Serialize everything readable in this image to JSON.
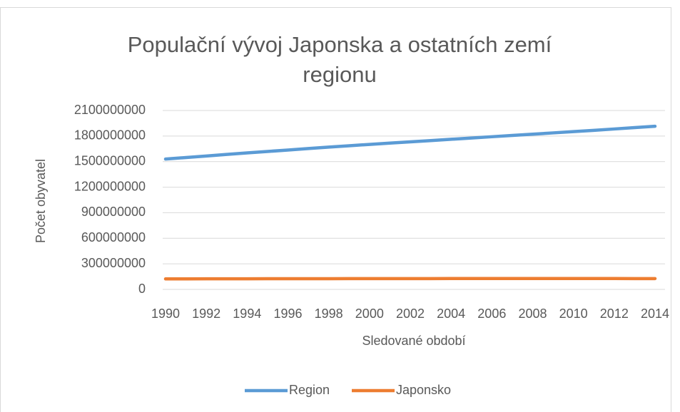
{
  "chart_data": {
    "type": "line",
    "title": "Populační vývoj Japonska a ostatních zemí regionu",
    "x_label": "Sledované období",
    "y_label": "Počet obyvatel",
    "x": [
      1990,
      1991,
      1992,
      1993,
      1994,
      1995,
      1996,
      1997,
      1998,
      1999,
      2000,
      2001,
      2002,
      2003,
      2004,
      2005,
      2006,
      2007,
      2008,
      2009,
      2010,
      2011,
      2012,
      2013,
      2014
    ],
    "series": [
      {
        "name": "Region",
        "color": "#5b9bd5",
        "values": [
          1530000000,
          1548000000,
          1566000000,
          1584000000,
          1602000000,
          1619000000,
          1636000000,
          1653000000,
          1670000000,
          1686000000,
          1702000000,
          1717000000,
          1732000000,
          1747000000,
          1762000000,
          1777000000,
          1792000000,
          1807000000,
          1822000000,
          1837000000,
          1852000000,
          1867000000,
          1883000000,
          1899000000,
          1915000000
        ]
      },
      {
        "name": "Japonsko",
        "color": "#ed7d31",
        "values": [
          123500000,
          123800000,
          124100000,
          124400000,
          124700000,
          125000000,
          125300000,
          125600000,
          125900000,
          126200000,
          126500000,
          126700000,
          126900000,
          127000000,
          127100000,
          127200000,
          127300000,
          127300000,
          127300000,
          127300000,
          127300000,
          127200000,
          127100000,
          127000000,
          126900000
        ]
      }
    ],
    "xlim": [
      1990,
      2014
    ],
    "xticks": [
      1990,
      1992,
      1994,
      1996,
      1998,
      2000,
      2002,
      2004,
      2006,
      2008,
      2010,
      2012,
      2014
    ],
    "ylim": [
      0,
      2100000000
    ],
    "yticks": [
      0,
      300000000,
      600000000,
      900000000,
      1200000000,
      1500000000,
      1800000000,
      2100000000
    ],
    "grid": true,
    "legend": "bottom"
  }
}
